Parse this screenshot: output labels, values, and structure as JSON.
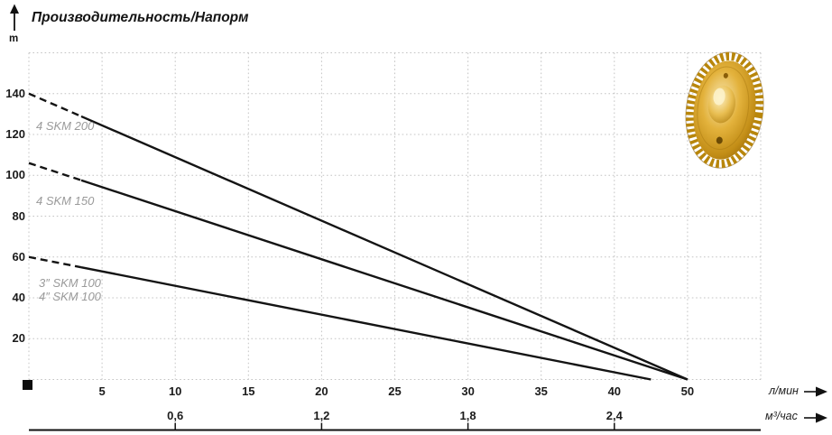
{
  "title": "Производительность/Напорм",
  "y_axis": {
    "unit_label": "m"
  },
  "x_axis_primary": {
    "unit_label": "л/мин"
  },
  "x_axis_secondary": {
    "unit_label": "м³/час"
  },
  "curve_labels": [
    "4 SKM 200",
    "4 SKM 150",
    "3″ SKM 100",
    "4″ SKM 100"
  ],
  "icons": {
    "y_axis_arrow": "up-arrow",
    "x_axis_arrow_primary": "right-arrow",
    "x_axis_arrow_secondary": "right-arrow",
    "impeller": "brass-pump-impeller"
  },
  "colors": {
    "curve": "#141414",
    "grid": "#c4c4c4",
    "curve_label": "#9a9a9a",
    "tick_text": "#1b1b1b",
    "axis_line": "#111111",
    "impeller_gold": "#d9a62a"
  },
  "chart_data": {
    "type": "line",
    "title": "Производительность/Напорм",
    "ylabel": "m",
    "xlabel_primary": "л/мин",
    "xlabel_secondary": "м³/час",
    "ylim": [
      0,
      160
    ],
    "grid": true,
    "y_ticks": [
      140,
      120,
      100,
      80,
      60,
      40,
      20
    ],
    "x_ticks_primary": [
      {
        "label": "5",
        "slot": 1
      },
      {
        "label": "10",
        "slot": 2
      },
      {
        "label": "15",
        "slot": 3
      },
      {
        "label": "20",
        "slot": 4
      },
      {
        "label": "25",
        "slot": 5
      },
      {
        "label": "30",
        "slot": 6
      },
      {
        "label": "35",
        "slot": 7
      },
      {
        "label": "40",
        "slot": 8
      },
      {
        "label": "50",
        "slot": 9
      }
    ],
    "x_ticks_secondary": [
      {
        "label": "0,6",
        "slot": 2
      },
      {
        "label": "1,2",
        "slot": 4
      },
      {
        "label": "1,8",
        "slot": 6
      },
      {
        "label": "2,4",
        "slot": 8
      }
    ],
    "series": [
      {
        "name": "4 SKM 200",
        "points": [
          [
            0,
            140
          ],
          [
            50,
            0
          ]
        ],
        "line": "dashed-start-then-solid"
      },
      {
        "name": "4 SKM 150",
        "points": [
          [
            0,
            106
          ],
          [
            50,
            0
          ]
        ],
        "line": "dashed-start-then-solid"
      },
      {
        "name": "3″ SKM 100 / 4″ SKM 100",
        "points": [
          [
            0,
            60
          ],
          [
            45,
            0
          ]
        ],
        "line": "dashed-start-then-solid"
      }
    ]
  }
}
